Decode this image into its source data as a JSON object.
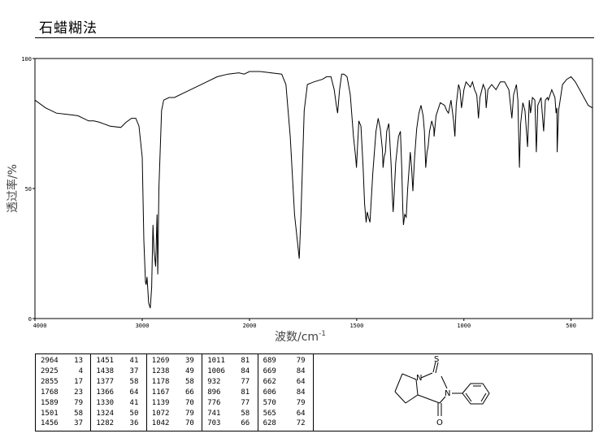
{
  "title": "石蜡糊法",
  "chart_data": {
    "type": "line",
    "title": "石蜡糊法",
    "xlabel": "波数/cm",
    "xlabel_superscript": "-1",
    "ylabel": "透过率/%",
    "xlim": [
      4000,
      400
    ],
    "ylim": [
      0,
      100
    ],
    "x_ticks": [
      4000,
      3000,
      2000,
      1500,
      1000,
      500
    ],
    "y_ticks": [
      0,
      50,
      100
    ],
    "grid": false,
    "series": [
      {
        "points": [
          [
            4000,
            84
          ],
          [
            3900,
            81
          ],
          [
            3800,
            79
          ],
          [
            3700,
            78.5
          ],
          [
            3600,
            78
          ],
          [
            3550,
            77
          ],
          [
            3500,
            76
          ],
          [
            3450,
            76
          ],
          [
            3400,
            75.5
          ],
          [
            3300,
            74
          ],
          [
            3200,
            73.5
          ],
          [
            3150,
            75.5
          ],
          [
            3100,
            77
          ],
          [
            3060,
            77
          ],
          [
            3030,
            74
          ],
          [
            3000,
            62
          ],
          [
            2985,
            30
          ],
          [
            2970,
            14
          ],
          [
            2964,
            13
          ],
          [
            2955,
            16
          ],
          [
            2940,
            6
          ],
          [
            2925,
            4
          ],
          [
            2912,
            12
          ],
          [
            2900,
            36
          ],
          [
            2890,
            26
          ],
          [
            2875,
            20
          ],
          [
            2862,
            40
          ],
          [
            2855,
            17
          ],
          [
            2845,
            50
          ],
          [
            2820,
            80
          ],
          [
            2800,
            84
          ],
          [
            2750,
            85
          ],
          [
            2700,
            85
          ],
          [
            2600,
            87
          ],
          [
            2500,
            89
          ],
          [
            2400,
            91
          ],
          [
            2300,
            93
          ],
          [
            2200,
            94
          ],
          [
            2100,
            94.5
          ],
          [
            2050,
            94
          ],
          [
            2000,
            95
          ],
          [
            1950,
            95
          ],
          [
            1900,
            94.5
          ],
          [
            1850,
            94
          ],
          [
            1830,
            90
          ],
          [
            1810,
            70
          ],
          [
            1790,
            40
          ],
          [
            1768,
            23
          ],
          [
            1760,
            40
          ],
          [
            1745,
            80
          ],
          [
            1730,
            90
          ],
          [
            1700,
            91
          ],
          [
            1660,
            92
          ],
          [
            1640,
            93
          ],
          [
            1620,
            93
          ],
          [
            1605,
            88
          ],
          [
            1595,
            82
          ],
          [
            1589,
            79
          ],
          [
            1580,
            88
          ],
          [
            1570,
            94
          ],
          [
            1560,
            94
          ],
          [
            1545,
            93
          ],
          [
            1530,
            86
          ],
          [
            1515,
            70
          ],
          [
            1505,
            62
          ],
          [
            1501,
            58
          ],
          [
            1490,
            76
          ],
          [
            1480,
            74
          ],
          [
            1470,
            58
          ],
          [
            1463,
            44
          ],
          [
            1456,
            37
          ],
          [
            1451,
            41
          ],
          [
            1445,
            39
          ],
          [
            1438,
            37
          ],
          [
            1425,
            56
          ],
          [
            1410,
            72
          ],
          [
            1400,
            77
          ],
          [
            1390,
            73
          ],
          [
            1380,
            65
          ],
          [
            1377,
            58
          ],
          [
            1372,
            62
          ],
          [
            1366,
            64
          ],
          [
            1360,
            72
          ],
          [
            1350,
            75
          ],
          [
            1340,
            60
          ],
          [
            1333,
            46
          ],
          [
            1330,
            41
          ],
          [
            1327,
            45
          ],
          [
            1324,
            50
          ],
          [
            1318,
            60
          ],
          [
            1305,
            70
          ],
          [
            1296,
            72
          ],
          [
            1290,
            58
          ],
          [
            1285,
            42
          ],
          [
            1282,
            36
          ],
          [
            1276,
            40
          ],
          [
            1269,
            39
          ],
          [
            1262,
            50
          ],
          [
            1250,
            64
          ],
          [
            1244,
            58
          ],
          [
            1238,
            49
          ],
          [
            1230,
            62
          ],
          [
            1220,
            73
          ],
          [
            1210,
            79
          ],
          [
            1200,
            82
          ],
          [
            1190,
            78
          ],
          [
            1184,
            72
          ],
          [
            1178,
            58
          ],
          [
            1172,
            64
          ],
          [
            1167,
            66
          ],
          [
            1160,
            72
          ],
          [
            1150,
            76
          ],
          [
            1140,
            73
          ],
          [
            1139,
            70
          ],
          [
            1130,
            78
          ],
          [
            1110,
            83
          ],
          [
            1090,
            82
          ],
          [
            1080,
            80
          ],
          [
            1072,
            79
          ],
          [
            1060,
            84
          ],
          [
            1048,
            76
          ],
          [
            1042,
            70
          ],
          [
            1036,
            82
          ],
          [
            1025,
            90
          ],
          [
            1018,
            88
          ],
          [
            1011,
            81
          ],
          [
            1006,
            84
          ],
          [
            1000,
            88
          ],
          [
            990,
            91
          ],
          [
            970,
            89
          ],
          [
            960,
            91
          ],
          [
            950,
            88
          ],
          [
            940,
            86
          ],
          [
            932,
            77
          ],
          [
            925,
            85
          ],
          [
            910,
            90
          ],
          [
            900,
            88
          ],
          [
            896,
            81
          ],
          [
            888,
            88
          ],
          [
            870,
            90
          ],
          [
            850,
            88
          ],
          [
            830,
            91
          ],
          [
            810,
            91
          ],
          [
            790,
            88
          ],
          [
            776,
            77
          ],
          [
            768,
            86
          ],
          [
            755,
            90
          ],
          [
            748,
            84
          ],
          [
            741,
            58
          ],
          [
            735,
            75
          ],
          [
            725,
            83
          ],
          [
            715,
            80
          ],
          [
            703,
            66
          ],
          [
            695,
            84
          ],
          [
            689,
            79
          ],
          [
            680,
            85
          ],
          [
            669,
            84
          ],
          [
            662,
            64
          ],
          [
            655,
            82
          ],
          [
            640,
            85
          ],
          [
            628,
            72
          ],
          [
            620,
            84
          ],
          [
            610,
            85
          ],
          [
            606,
            84
          ],
          [
            590,
            88
          ],
          [
            575,
            85
          ],
          [
            570,
            79
          ],
          [
            566,
            81
          ],
          [
            565,
            64
          ],
          [
            558,
            80
          ],
          [
            540,
            90
          ],
          [
            520,
            92
          ],
          [
            500,
            93
          ],
          [
            480,
            91
          ],
          [
            460,
            88
          ],
          [
            440,
            85
          ],
          [
            420,
            82
          ],
          [
            400,
            81
          ]
        ]
      }
    ]
  },
  "peak_table": {
    "columns": [
      [
        [
          "2964",
          "13"
        ],
        [
          "2925",
          "4"
        ],
        [
          "2855",
          "17"
        ],
        [
          "1768",
          "23"
        ],
        [
          "1589",
          "79"
        ],
        [
          "1501",
          "58"
        ],
        [
          "1456",
          "37"
        ]
      ],
      [
        [
          "1451",
          "41"
        ],
        [
          "1438",
          "37"
        ],
        [
          "1377",
          "58"
        ],
        [
          "1366",
          "64"
        ],
        [
          "1330",
          "41"
        ],
        [
          "1324",
          "50"
        ],
        [
          "1282",
          "36"
        ]
      ],
      [
        [
          "1269",
          "39"
        ],
        [
          "1238",
          "49"
        ],
        [
          "1178",
          "58"
        ],
        [
          "1167",
          "66"
        ],
        [
          "1139",
          "70"
        ],
        [
          "1072",
          "79"
        ],
        [
          "1042",
          "70"
        ]
      ],
      [
        [
          "1011",
          "81"
        ],
        [
          "1006",
          "84"
        ],
        [
          "932",
          "77"
        ],
        [
          "896",
          "81"
        ],
        [
          "776",
          "77"
        ],
        [
          "741",
          "58"
        ],
        [
          "703",
          "66"
        ]
      ],
      [
        [
          "689",
          "79"
        ],
        [
          "669",
          "84"
        ],
        [
          "662",
          "64"
        ],
        [
          "606",
          "84"
        ],
        [
          "570",
          "79"
        ],
        [
          "565",
          "64"
        ],
        [
          "628",
          "72"
        ]
      ]
    ]
  },
  "structure": {
    "atoms": {
      "s": "S",
      "n1": "N",
      "n2": "N",
      "o": "O"
    }
  }
}
